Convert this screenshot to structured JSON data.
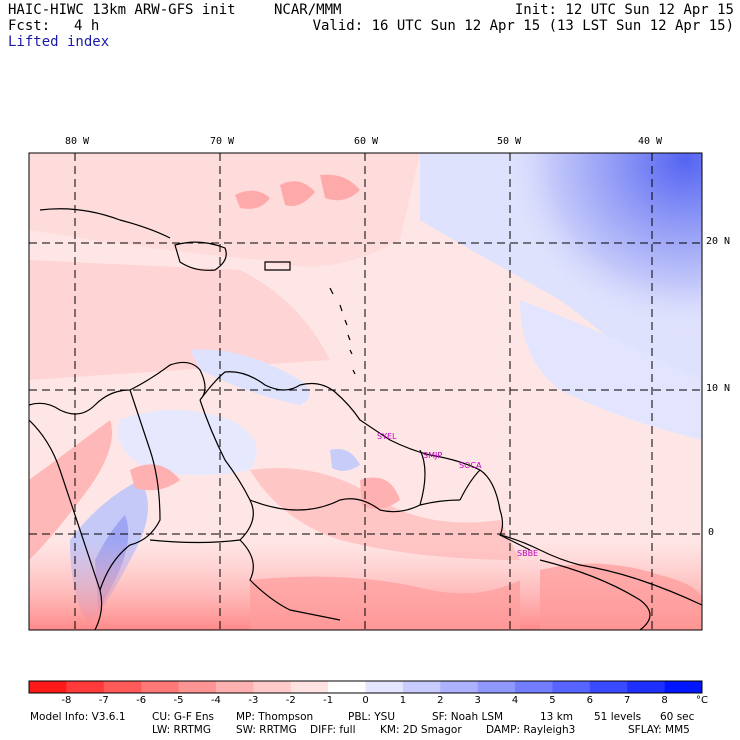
{
  "header": {
    "model_title": "HAIC-HIWC 13km ARW-GFS init",
    "center": "NCAR/MMM",
    "fcst_label": "Fcst:",
    "fcst_value": "4 h",
    "init_text": "Init: 12 UTC Sun 12 Apr 15",
    "valid_text": "Valid: 16 UTC Sun 12 Apr 15 (13 LST Sun 12 Apr 15)",
    "field_name": "Lifted index"
  },
  "map": {
    "lon_labels": [
      "80 W",
      "70 W",
      "60 W",
      "50 W",
      "40 W"
    ],
    "lat_labels": [
      "20 N",
      "10 N",
      "0"
    ],
    "stations": [
      "SYEL",
      "SMJP",
      "SOCA",
      "SBBE"
    ],
    "colors": {
      "land_outline": "#000000",
      "grid": "#000000",
      "station": "#c000c0"
    }
  },
  "colorbar": {
    "labels": [
      "-8",
      "-7",
      "-6",
      "-5",
      "-4",
      "-3",
      "-2",
      "-1",
      "0",
      "1",
      "2",
      "3",
      "4",
      "5",
      "6",
      "7",
      "8"
    ],
    "unit": "°C",
    "colors": [
      "#ff1a1a",
      "#ff3a3a",
      "#ff5a5a",
      "#ff7878",
      "#ff9494",
      "#ffb0b0",
      "#ffcaca",
      "#ffe2e2",
      "#ffffff",
      "#e4e6ff",
      "#c8ccff",
      "#acb2ff",
      "#8f98ff",
      "#737eff",
      "#5764ff",
      "#3a4aff",
      "#1e30ff",
      "#0016ff"
    ]
  },
  "footer": {
    "line1": {
      "model_info": "Model Info: V3.6.1",
      "cu": "CU: G-F Ens",
      "mp": "MP: Thompson",
      "pbl": "PBL: YSU",
      "sf": "SF: Noah LSM",
      "res": "13 km",
      "levels": "51 levels",
      "dt": "60 sec"
    },
    "line2": {
      "lw": "LW: RRTMG",
      "sw": "SW: RRTMG",
      "diff": "DIFF: full",
      "km": "KM: 2D Smagor",
      "damp": "DAMP: Rayleigh3",
      "sflay": "SFLAY: MM5"
    }
  }
}
